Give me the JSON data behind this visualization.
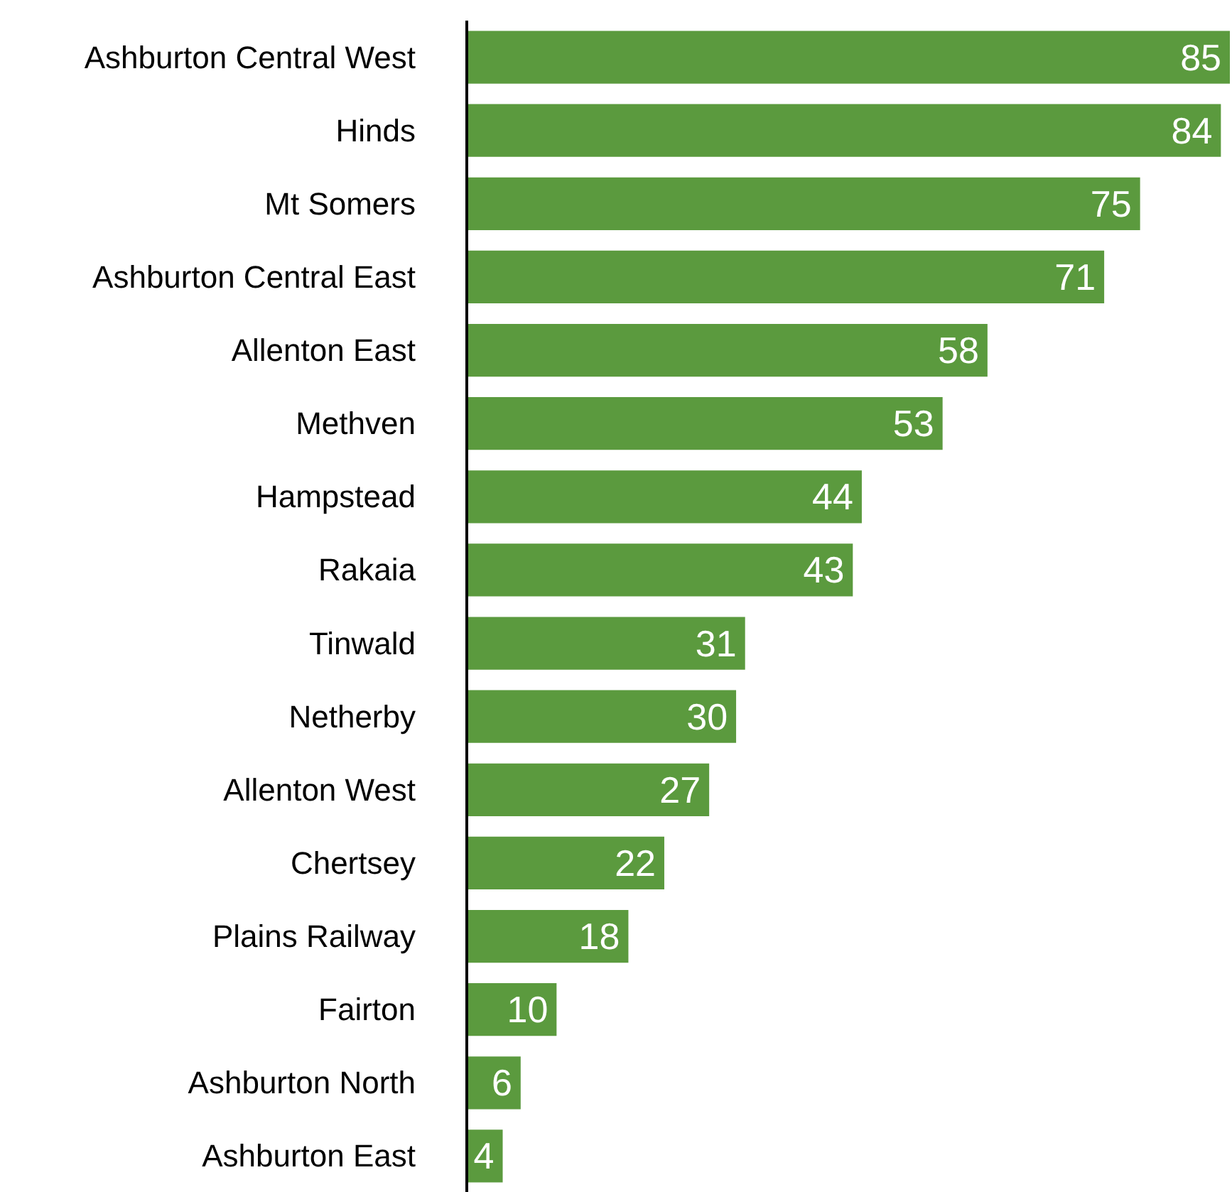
{
  "chart_data": {
    "type": "bar",
    "orientation": "horizontal",
    "data_labels": true,
    "color": "#5b9a3e",
    "categories": [
      "Ashburton Central West",
      "Hinds",
      "Mt Somers",
      "Ashburton Central East",
      "Allenton East",
      "Methven",
      "Hampstead",
      "Rakaia",
      "Tinwald",
      "Netherby",
      "Allenton West",
      "Chertsey",
      "Plains Railway",
      "Fairton",
      "Ashburton North",
      "Ashburton East"
    ],
    "values": [
      85,
      84,
      75,
      71,
      58,
      53,
      44,
      43,
      31,
      30,
      27,
      22,
      18,
      10,
      6,
      4
    ]
  }
}
